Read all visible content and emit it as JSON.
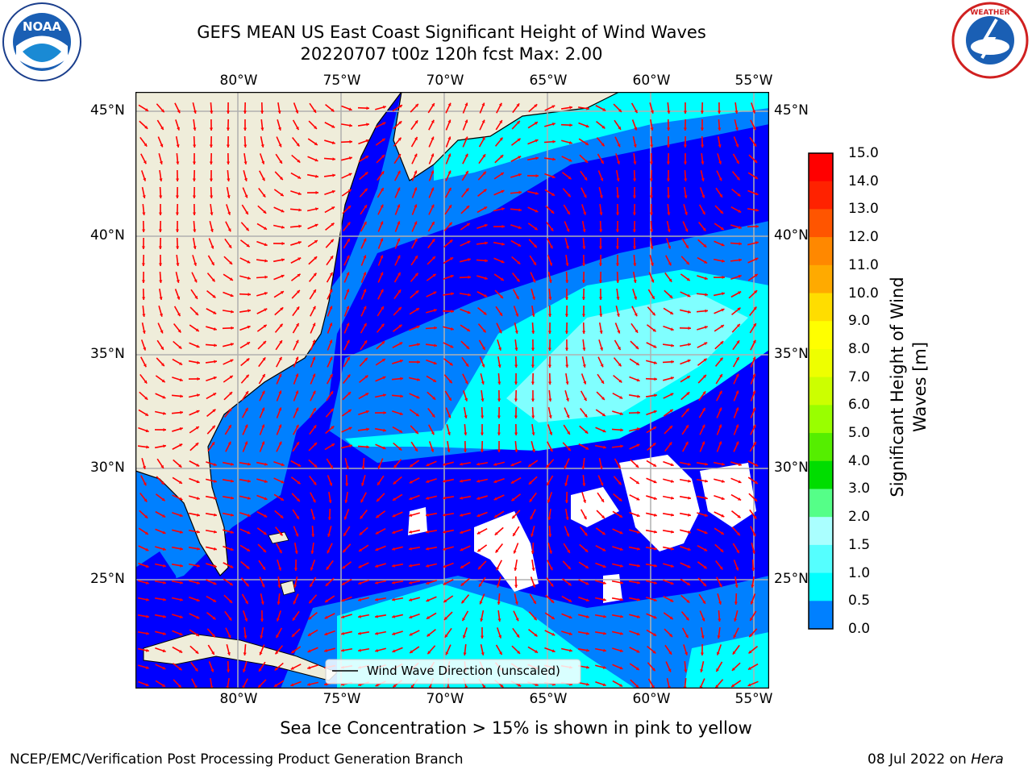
{
  "title": {
    "line1": "GEFS MEAN US East Coast Significant Height of Wind Waves",
    "line2": "20220707 t00z 120h fcst   Max: 2.00"
  },
  "logos": {
    "left": {
      "text": "NOAA",
      "ring_text": "NATIONAL OCEANIC AND ATMOSPHERIC ADMINISTRATION · U.S. DEPARTMENT OF COMMERCE",
      "icon": "noaa-logo"
    },
    "right": {
      "ring_text": "NATIONAL WEATHER SERVICE",
      "icon": "nws-logo"
    }
  },
  "map": {
    "lon_labels": [
      "80°W",
      "75°W",
      "70°W",
      "65°W",
      "60°W",
      "55°W"
    ],
    "lat_labels": [
      "45°N",
      "40°N",
      "35°N",
      "30°N",
      "25°N"
    ],
    "legend_label": "Wind Wave Direction (unscaled)",
    "colors": {
      "land": "#efedda",
      "ocean_low": "#0000ff",
      "ocean_mid": "#0080ff",
      "ocean_high": "#00ffff",
      "ocean_top": "#80ffff",
      "arrow": "#ff0000",
      "grid": "#b0b0b0"
    }
  },
  "colorbar": {
    "label": "Significant Height of Wind Waves [m]",
    "label_line1": "Significant Height of Wind",
    "label_line2": "Waves [m]",
    "ticks": [
      "15.0",
      "14.0",
      "13.0",
      "12.0",
      "11.0",
      "10.0",
      "9.0",
      "8.0",
      "7.0",
      "6.0",
      "5.0",
      "4.0",
      "3.0",
      "2.0",
      "1.5",
      "1.0",
      "0.5",
      "0.0"
    ],
    "colors": [
      "#ff0000",
      "#ff2200",
      "#ff5500",
      "#ff8800",
      "#ffaa00",
      "#ffdd00",
      "#ffff00",
      "#eeff00",
      "#ccff00",
      "#99ff00",
      "#55ee00",
      "#00dd00",
      "#55ff88",
      "#aaffff",
      "#55ffff",
      "#00ffff",
      "#0080ff",
      "#0000ff"
    ]
  },
  "footer": {
    "sea_ice": "Sea Ice Concentration > 15% is shown in pink to yellow",
    "branch": "NCEP/EMC/Verification Post Processing Product Generation Branch",
    "date": "08 Jul 2022 on",
    "machine": "Hera"
  }
}
